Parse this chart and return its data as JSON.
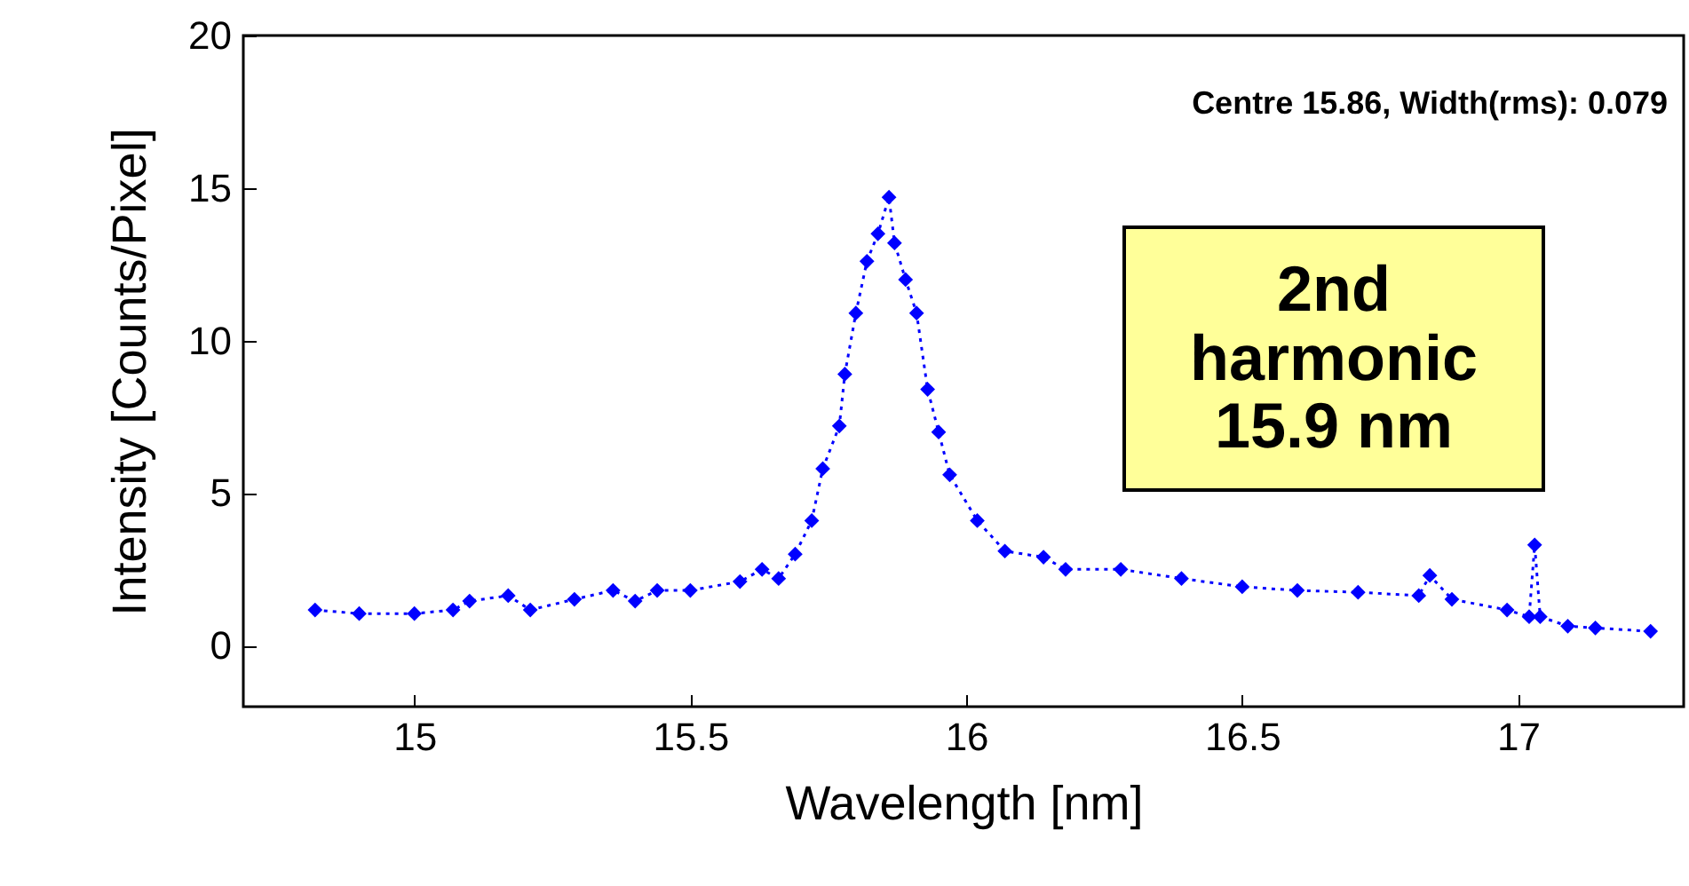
{
  "chart_data": {
    "type": "line",
    "xlabel": "Wavelength [nm]",
    "ylabel": "Intensity [Counts/Pixel]",
    "annotations": [
      "Centre 15.86, Width(rms): 0.079",
      "2nd harmonic 15.9 nm"
    ],
    "xlim": [
      14.69,
      17.3
    ],
    "xticks": [
      15,
      15.5,
      16,
      16.5,
      17
    ],
    "ylim": [
      -2,
      20
    ],
    "yticks": [
      0,
      5,
      10,
      15,
      20
    ],
    "grid": false,
    "marker": "diamond",
    "line_style": "dotted",
    "x": [
      14.82,
      14.9,
      15.0,
      15.07,
      15.1,
      15.17,
      15.21,
      15.29,
      15.36,
      15.4,
      15.44,
      15.5,
      15.59,
      15.63,
      15.66,
      15.69,
      15.72,
      15.74,
      15.77,
      15.78,
      15.8,
      15.82,
      15.84,
      15.86,
      15.87,
      15.89,
      15.91,
      15.93,
      15.95,
      15.97,
      16.02,
      16.07,
      16.14,
      16.18,
      16.28,
      16.39,
      16.5,
      16.6,
      16.71,
      16.82,
      16.84,
      16.88,
      16.98,
      17.02,
      17.03,
      17.04,
      17.09,
      17.14,
      17.24
    ],
    "series": [
      {
        "color": "#0000ff",
        "values": [
          1.17,
          1.05,
          1.05,
          1.17,
          1.46,
          1.64,
          1.17,
          1.52,
          1.81,
          1.46,
          1.81,
          1.81,
          2.1,
          2.5,
          2.2,
          3.0,
          4.1,
          5.8,
          7.2,
          8.9,
          10.9,
          12.6,
          13.5,
          14.7,
          13.2,
          12.0,
          10.9,
          8.4,
          7.0,
          5.6,
          4.1,
          3.1,
          2.9,
          2.5,
          2.5,
          2.2,
          1.93,
          1.81,
          1.75,
          1.64,
          2.3,
          1.52,
          1.17,
          0.95,
          3.3,
          0.95,
          0.64,
          0.58,
          0.47
        ]
      }
    ]
  }
}
